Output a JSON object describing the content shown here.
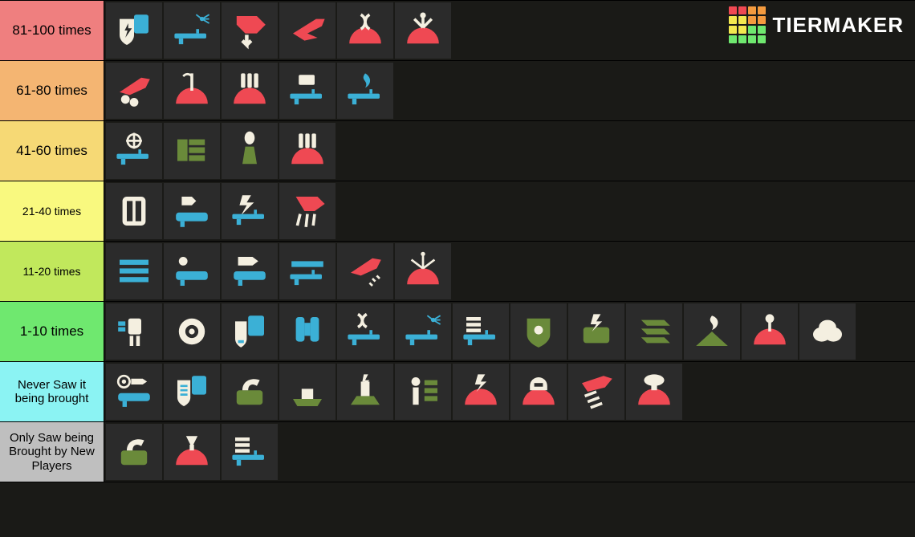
{
  "brand": {
    "text": "TIERMAKER"
  },
  "palette": {
    "cell": "#2b2b2b",
    "red": "#ef4953",
    "blue": "#3bb0d6",
    "cream": "#f4efe0",
    "green": "#6a8a3a",
    "orange": "#f49b3f",
    "yellow": "#f2e84f",
    "lime": "#c1e85c",
    "mint": "#6fe86f",
    "cyan": "#8bf3f3",
    "gray": "#bfbfbf",
    "bg": "#1a1a17"
  },
  "brand_logo_colors": [
    "#ef4953",
    "#ef4953",
    "#f49b3f",
    "#f49b3f",
    "#f2e84f",
    "#f2e84f",
    "#f49b3f",
    "#f49b3f",
    "#f2e84f",
    "#f2e84f",
    "#6fe86f",
    "#6fe86f",
    "#6fe86f",
    "#6fe86f",
    "#6fe86f",
    "#6fe86f"
  ],
  "tiers": [
    {
      "label": "81-100 times",
      "label_fontsize": 17,
      "color": "#ef7f7f",
      "items": [
        {
          "color": "cream",
          "shape": "shield_lightning"
        },
        {
          "color": "blue",
          "shape": "laser_rifle"
        },
        {
          "color": "red",
          "shape": "airstrike_down"
        },
        {
          "color": "red",
          "shape": "jet_swept"
        },
        {
          "color": "red",
          "shape": "dna_dome"
        },
        {
          "color": "red",
          "shape": "spike_dome"
        }
      ]
    },
    {
      "label": "61-80 times",
      "label_fontsize": 17,
      "color": "#f4b572",
      "items": [
        {
          "color": "red",
          "shape": "jet_bomb"
        },
        {
          "color": "red",
          "shape": "flag_dome"
        },
        {
          "color": "red",
          "shape": "bullets_dome"
        },
        {
          "color": "blue",
          "shape": "card_rifle"
        },
        {
          "color": "blue",
          "shape": "flame_rifle"
        }
      ]
    },
    {
      "label": "41-60 times",
      "label_fontsize": 17,
      "color": "#f6d975",
      "items": [
        {
          "color": "blue",
          "shape": "crosshair_sniper"
        },
        {
          "color": "green",
          "shape": "sentry_stack"
        },
        {
          "color": "green",
          "shape": "mortar_up"
        },
        {
          "color": "red",
          "shape": "bullets_dome"
        }
      ]
    },
    {
      "label": "21-40 times",
      "label_fontsize": 14,
      "color": "#f9f97f",
      "items": [
        {
          "color": "cream",
          "shape": "armor_pack"
        },
        {
          "color": "blue",
          "shape": "rocket_tube"
        },
        {
          "color": "blue",
          "shape": "lightning_rifle"
        },
        {
          "color": "red",
          "shape": "jet_fall"
        }
      ]
    },
    {
      "label": "11-20 times",
      "label_fontsize": 14,
      "color": "#c1e85c",
      "items": [
        {
          "color": "blue",
          "shape": "three_bars"
        },
        {
          "color": "blue",
          "shape": "dot_launcher"
        },
        {
          "color": "blue",
          "shape": "missile_launcher"
        },
        {
          "color": "blue",
          "shape": "beam_rifle"
        },
        {
          "color": "red",
          "shape": "jet_sparkle"
        },
        {
          "color": "red",
          "shape": "radar_dome"
        }
      ]
    },
    {
      "label": "1-10 times",
      "label_fontsize": 17,
      "color": "#6fe86f",
      "items": [
        {
          "color": "blue",
          "shape": "mech_small"
        },
        {
          "color": "cream",
          "shape": "circle_ring"
        },
        {
          "color": "blue",
          "shape": "ammo_pack"
        },
        {
          "color": "blue",
          "shape": "jetpack"
        },
        {
          "color": "blue",
          "shape": "dna_rifle"
        },
        {
          "color": "blue",
          "shape": "laser_rifle"
        },
        {
          "color": "blue",
          "shape": "triple_rifle"
        },
        {
          "color": "green",
          "shape": "solid_shield"
        },
        {
          "color": "green",
          "shape": "bolt_sentry"
        },
        {
          "color": "green",
          "shape": "stack_slant"
        },
        {
          "color": "green",
          "shape": "fire_hill"
        },
        {
          "color": "red",
          "shape": "pin_dome"
        },
        {
          "color": "cream",
          "shape": "cloud"
        }
      ]
    },
    {
      "label": "Never Saw it being brought",
      "label_fontsize": 15,
      "color": "#8bf3f3",
      "items": [
        {
          "color": "blue",
          "shape": "eye_launcher"
        },
        {
          "color": "blue",
          "shape": "grid_shield"
        },
        {
          "color": "green",
          "shape": "claw_sentry"
        },
        {
          "color": "green",
          "shape": "ship_flat"
        },
        {
          "color": "green",
          "shape": "tower_bolt"
        },
        {
          "color": "green",
          "shape": "person_bars"
        },
        {
          "color": "red",
          "shape": "bolt_dome"
        },
        {
          "color": "red",
          "shape": "helmet_dome"
        },
        {
          "color": "red",
          "shape": "wing_streak"
        },
        {
          "color": "red",
          "shape": "mushroom_dome"
        }
      ]
    },
    {
      "label": "Only Saw being Brought by New Players",
      "label_fontsize": 15,
      "color": "#bfbfbf",
      "items": [
        {
          "color": "green",
          "shape": "claw_sentry"
        },
        {
          "color": "red",
          "shape": "down_dome"
        },
        {
          "color": "blue",
          "shape": "triple_rifle"
        }
      ]
    }
  ]
}
